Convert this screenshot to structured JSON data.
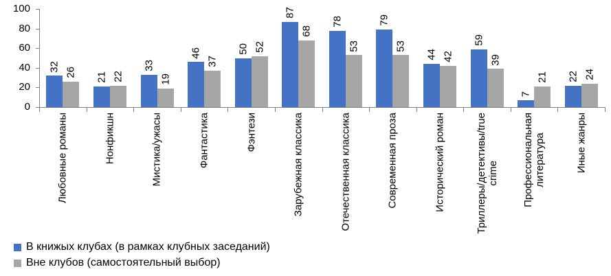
{
  "chart_data": {
    "type": "bar",
    "title": "",
    "xlabel": "",
    "ylabel": "",
    "ylim": [
      0,
      100
    ],
    "y_ticks": [
      0,
      20,
      40,
      60,
      80,
      100
    ],
    "grid": "off",
    "legend_position": "bottom-left",
    "bar_label_rotation": -90,
    "category_label_rotation": -90,
    "categories": [
      "Любовные романы",
      "Нонфикшн",
      "Мистика/ужасы",
      "Фантастика",
      "Фэнтези",
      "Зарубежная классика",
      "Отечественная классика",
      "Современная проза",
      "Исторический роман",
      "Триллеры/детективы/true\ncrime",
      "Профессиональная\nлитература",
      "Иные жанры"
    ],
    "series": [
      {
        "name": "В книжых клубах (в рамках клубных заседаний)",
        "color": "#4472C4",
        "values": [
          32,
          21,
          33,
          46,
          50,
          87,
          78,
          79,
          44,
          59,
          7,
          22
        ]
      },
      {
        "name": "Вне клубов (самостоятельный выбор)",
        "color": "#A6A6A6",
        "values": [
          26,
          22,
          19,
          37,
          52,
          68,
          53,
          53,
          42,
          39,
          21,
          24
        ]
      }
    ],
    "colors": {
      "axis": "#808080",
      "text": "#000000",
      "background": "#FFFFFF"
    }
  }
}
